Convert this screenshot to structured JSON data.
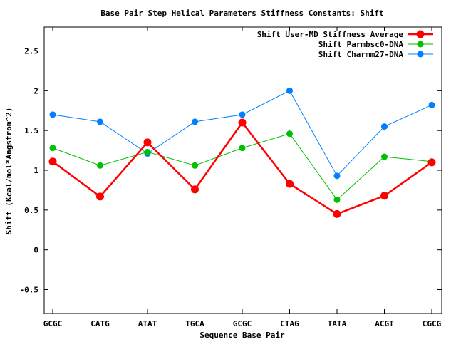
{
  "chart_data": {
    "type": "line",
    "title": "Base Pair Step Helical Parameters Stiffness Constants: Shift",
    "xlabel": "Sequence Base Pair",
    "ylabel": "Shift (Kcal/mol*Angstrom^2)",
    "categories": [
      "GCGC",
      "CATG",
      "ATAT",
      "TGCA",
      "GCGC",
      "CTAG",
      "TATA",
      "ACGT",
      "CGCG"
    ],
    "ylim": [
      -0.8,
      2.8
    ],
    "yticks": [
      -0.5,
      0,
      0.5,
      1,
      1.5,
      2,
      2.5
    ],
    "ytick_labels": [
      "-0.5",
      "0",
      "0.5",
      "1",
      "1.5",
      "2",
      "2.5"
    ],
    "grid": false,
    "legend_position": "top-right",
    "series": [
      {
        "name": "Shift User-MD Stiffness Average",
        "color": "#ff0000",
        "values": [
          1.11,
          0.67,
          1.35,
          0.76,
          1.6,
          0.83,
          0.45,
          0.68,
          1.1
        ]
      },
      {
        "name": "Shift Parmbsc0-DNA",
        "color": "#00c000",
        "values": [
          1.28,
          1.06,
          1.23,
          1.06,
          1.28,
          1.46,
          0.63,
          1.17,
          1.11
        ]
      },
      {
        "name": "Shift Charmm27-DNA",
        "color": "#0080ff",
        "values": [
          1.7,
          1.61,
          1.21,
          1.61,
          1.7,
          2.0,
          0.93,
          1.55,
          1.82
        ]
      }
    ]
  }
}
